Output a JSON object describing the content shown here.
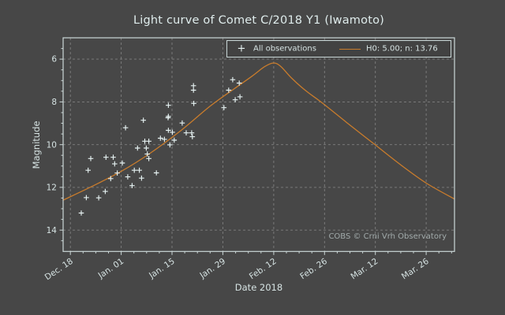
{
  "title": "Light curve of Comet C/2018 Y1 (Iwamoto)",
  "watermark": "COBS © Crni Vrh Observatory",
  "colors": {
    "background": "#474747",
    "frame": "#ccd8d8",
    "grid": "#8d8d8d",
    "text": "#d6e3e3",
    "curve": "#c97c2c",
    "marker": "#e6f2f2",
    "watermark": "#a2abab",
    "legend_background": "#424242"
  },
  "chart_data": {
    "type": "scatter",
    "title": "Light curve of Comet C/2018 Y1 (Iwamoto)",
    "xlabel": "Date 2018",
    "ylabel": "Magnitude",
    "grid": true,
    "legend_position": "upper right",
    "x_axis": {
      "unit": "days since Dec. 18",
      "range_days": [
        -2,
        105.8
      ],
      "ticks": [
        {
          "day": 0,
          "label": "Dec. 18"
        },
        {
          "day": 14,
          "label": "Jan. 01"
        },
        {
          "day": 28,
          "label": "Jan. 15"
        },
        {
          "day": 42,
          "label": "Jan. 29"
        },
        {
          "day": 56,
          "label": "Feb. 12"
        },
        {
          "day": 70,
          "label": "Feb. 26"
        },
        {
          "day": 84,
          "label": "Mar. 12"
        },
        {
          "day": 98,
          "label": "Mar. 26"
        }
      ]
    },
    "y_axis": {
      "range": [
        5,
        15
      ],
      "inverted": true,
      "ticks": [
        {
          "value": 6,
          "label": "6"
        },
        {
          "value": 8,
          "label": "8"
        },
        {
          "value": 10,
          "label": "10"
        },
        {
          "value": 12,
          "label": "12"
        },
        {
          "value": 14,
          "label": "14"
        }
      ]
    },
    "series": [
      {
        "name": "All observations",
        "type": "scatter",
        "marker": "plus",
        "points": [
          [
            3.0,
            13.2
          ],
          [
            4.4,
            12.48
          ],
          [
            4.9,
            11.2
          ],
          [
            5.6,
            10.65
          ],
          [
            7.8,
            12.49
          ],
          [
            9.6,
            12.19
          ],
          [
            9.8,
            10.59
          ],
          [
            11.1,
            11.59
          ],
          [
            11.8,
            10.59
          ],
          [
            12.2,
            10.9
          ],
          [
            12.9,
            11.33
          ],
          [
            14.3,
            10.86
          ],
          [
            15.2,
            9.21
          ],
          [
            15.8,
            11.51
          ],
          [
            17.0,
            11.92
          ],
          [
            17.6,
            11.2
          ],
          [
            18.5,
            10.16
          ],
          [
            19.0,
            11.2
          ],
          [
            19.6,
            11.57
          ],
          [
            20.1,
            8.86
          ],
          [
            20.5,
            9.84
          ],
          [
            20.9,
            10.16
          ],
          [
            21.2,
            10.44
          ],
          [
            21.6,
            9.84
          ],
          [
            21.6,
            10.65
          ],
          [
            23.7,
            11.32
          ],
          [
            24.8,
            9.7
          ],
          [
            25.9,
            9.75
          ],
          [
            26.9,
            8.74
          ],
          [
            27.0,
            8.16
          ],
          [
            27.0,
            8.68
          ],
          [
            27.0,
            9.33
          ],
          [
            27.4,
            10.01
          ],
          [
            28.1,
            9.42
          ],
          [
            28.6,
            9.79
          ],
          [
            30.8,
            8.99
          ],
          [
            31.9,
            9.45
          ],
          [
            33.4,
            9.45
          ],
          [
            33.6,
            9.63
          ],
          [
            33.9,
            7.24
          ],
          [
            33.9,
            7.45
          ],
          [
            34.0,
            8.07
          ],
          [
            42.3,
            8.27
          ],
          [
            43.6,
            7.45
          ],
          [
            44.7,
            6.96
          ],
          [
            45.4,
            7.9
          ],
          [
            46.5,
            7.12
          ],
          [
            46.7,
            7.76
          ]
        ]
      },
      {
        "name": "H0: 5.00; n: 13.76",
        "type": "line",
        "points": [
          [
            -2,
            12.6
          ],
          [
            6,
            11.95
          ],
          [
            14,
            11.25
          ],
          [
            22,
            10.4
          ],
          [
            30,
            9.4
          ],
          [
            38.5,
            8.2
          ],
          [
            45,
            7.4
          ],
          [
            50,
            6.8
          ],
          [
            53.5,
            6.35
          ],
          [
            56,
            6.18
          ],
          [
            58,
            6.35
          ],
          [
            61,
            6.9
          ],
          [
            65,
            7.5
          ],
          [
            69,
            8.0
          ],
          [
            76,
            8.95
          ],
          [
            83.5,
            9.95
          ],
          [
            91,
            10.95
          ],
          [
            98,
            11.8
          ],
          [
            105.8,
            12.55
          ]
        ]
      }
    ]
  }
}
